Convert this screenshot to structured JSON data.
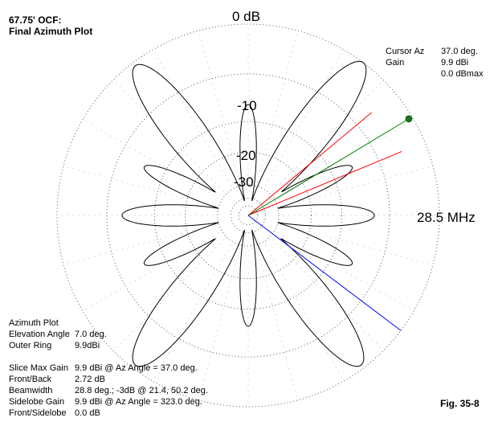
{
  "header": {
    "title_line1": "67.75' OCF:",
    "title_line2": "Final Azimuth Plot"
  },
  "rings": {
    "zero": "0 dB",
    "minus10": "-10",
    "minus20": "-20",
    "minus30": "-30"
  },
  "frequency": "28.5 MHz",
  "cursor": {
    "az_label": "Cursor Az",
    "az_value": "37.0 deg.",
    "gain_label": "Gain",
    "gain_value": "9.9 dBi",
    "gain_rel": "0.0 dBmax"
  },
  "info": {
    "heading": "Azimuth Plot",
    "rows": [
      {
        "label": "Elevation Angle",
        "value": "7.0 deg."
      },
      {
        "label": "Outer Ring",
        "value": "9.9dBi"
      }
    ],
    "stats": [
      {
        "label": "Slice Max Gain",
        "value": "9.9 dBi @ Az Angle = 37.0 deg."
      },
      {
        "label": "Front/Back",
        "value": "2.72 dB"
      },
      {
        "label": "Beamwidth",
        "value": "28.8 deg.; -3dB @ 21.4, 50.2 deg."
      },
      {
        "label": "Sidelobe Gain",
        "value": "9.9 dBi @ Az Angle = 323.0 deg."
      },
      {
        "label": "Front/Sidelobe",
        "value": "0.0 dB"
      }
    ]
  },
  "figure_label": "Fig. 35-8",
  "colors": {
    "pattern": "#000000",
    "cursor_line": "#008000",
    "beamwidth_lines": "#ff0000",
    "sidelobe_line": "#0000ff",
    "cursor_dot": "#1f6e1f"
  },
  "pattern": {
    "lobe_angles_deg": [
      37,
      323,
      90,
      270,
      143,
      217,
      115,
      65,
      245,
      295,
      0,
      180
    ],
    "max_gain_dbi": 9.9
  }
}
